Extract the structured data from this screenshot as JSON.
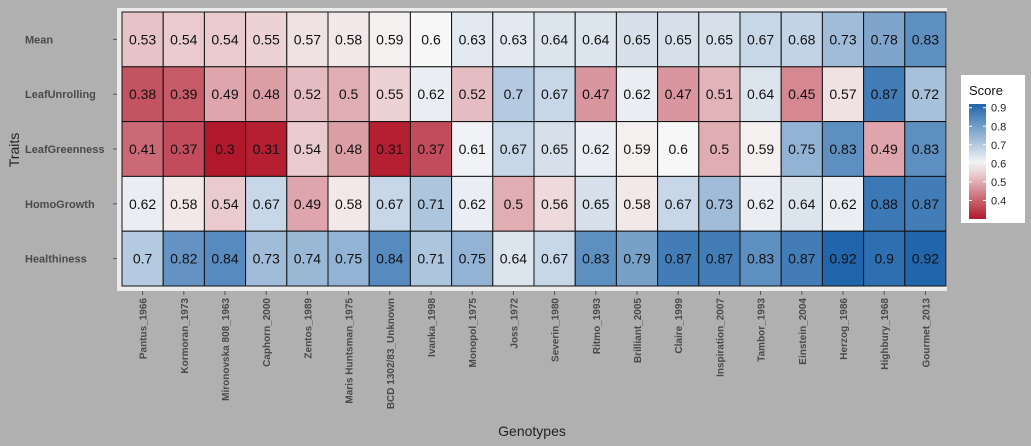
{
  "chart_data": {
    "type": "heatmap",
    "xlabel": "Genotypes",
    "ylabel": "Traits",
    "x_categories": [
      "Pantus_1966",
      "Kormoran_1973",
      "Mironovska 808_1963",
      "Caphorn_2000",
      "Zentos_1989",
      "Maris Huntsman_1975",
      "BCD 1302/83_Unknown",
      "Ivanka_1998",
      "Monopol_1975",
      "Joss_1972",
      "Severin_1980",
      "Ritmo_1993",
      "Brilliant_2005",
      "Claire_1999",
      "Inspiration_2007",
      "Tambor_1993",
      "Einstein_2004",
      "Herzog_1986",
      "Highbury_1968",
      "Gourmet_2013"
    ],
    "y_categories": [
      "Mean",
      "LeafUnrolling",
      "LeafGreenness",
      "HomoGrowth",
      "Healthiness"
    ],
    "values": [
      [
        0.53,
        0.54,
        0.54,
        0.55,
        0.57,
        0.58,
        0.59,
        0.6,
        0.63,
        0.63,
        0.64,
        0.64,
        0.65,
        0.65,
        0.65,
        0.67,
        0.68,
        0.73,
        0.78,
        0.83
      ],
      [
        0.38,
        0.39,
        0.49,
        0.48,
        0.52,
        0.5,
        0.55,
        0.62,
        0.52,
        0.7,
        0.67,
        0.47,
        0.62,
        0.47,
        0.51,
        0.64,
        0.45,
        0.57,
        0.87,
        0.72
      ],
      [
        0.41,
        0.37,
        0.3,
        0.31,
        0.54,
        0.48,
        0.31,
        0.37,
        0.61,
        0.67,
        0.65,
        0.62,
        0.59,
        0.6,
        0.5,
        0.59,
        0.75,
        0.83,
        0.49,
        0.83
      ],
      [
        0.62,
        0.58,
        0.54,
        0.67,
        0.49,
        0.58,
        0.67,
        0.71,
        0.62,
        0.5,
        0.56,
        0.65,
        0.58,
        0.67,
        0.73,
        0.62,
        0.64,
        0.62,
        0.88,
        0.87
      ],
      [
        0.7,
        0.82,
        0.84,
        0.73,
        0.74,
        0.75,
        0.84,
        0.71,
        0.75,
        0.64,
        0.67,
        0.83,
        0.79,
        0.87,
        0.87,
        0.83,
        0.87,
        0.92,
        0.9,
        0.92
      ]
    ],
    "legend": {
      "title": "Score",
      "ticks": [
        "0.9",
        "0.8",
        "0.7",
        "0.6",
        "0.5",
        "0.4"
      ],
      "range": [
        0.3,
        0.92
      ],
      "placement": "right",
      "colors": {
        "low": "#b2182b",
        "mid": "#f7f7f7",
        "high": "#2166ac"
      },
      "midpoint": 0.6
    },
    "colors": {
      "panel_background": "#ebebeb",
      "page_background": "#b0b0b0",
      "cell_border": "#111111"
    }
  }
}
